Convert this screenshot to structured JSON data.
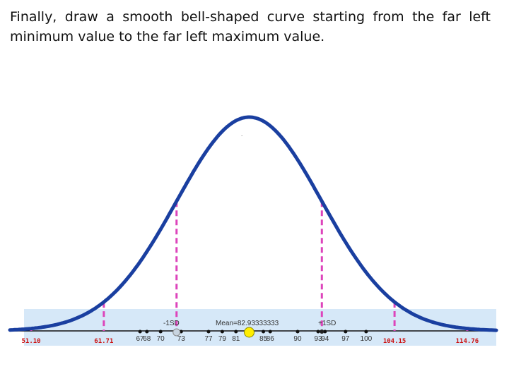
{
  "slide": {
    "instruction": "Finally, draw a smooth bell-shaped curve starting from the far left minimum value to the far left maximum value."
  },
  "chart_data": {
    "type": "line",
    "description_labels": {
      "mean": "Mean=82.93333333",
      "minus_sd": "-1SD",
      "plus_sd": "+1SD"
    },
    "mean": 82.93333333,
    "sd": 10.605,
    "xlim": [
      48,
      119
    ],
    "number_line": {
      "ticks": [
        67,
        68,
        70,
        73,
        77,
        79,
        81,
        85,
        86,
        90,
        93,
        94,
        97,
        100
      ],
      "tick_labels": [
        {
          "text": "67",
          "x": 67
        },
        {
          "text": "68",
          "x": 68
        },
        {
          "text": "70",
          "x": 70
        },
        {
          "text": "73",
          "x": 73
        },
        {
          "text": "77",
          "x": 77
        },
        {
          "text": "79",
          "x": 79
        },
        {
          "text": "81",
          "x": 81
        },
        {
          "text": "85",
          "x": 85
        },
        {
          "text": "86",
          "x": 86
        },
        {
          "text": "90",
          "x": 90
        },
        {
          "text": "93",
          "x": 93
        },
        {
          "text": "94",
          "x": 94
        },
        {
          "text": "97",
          "x": 97
        },
        {
          "text": "100",
          "x": 100
        }
      ]
    },
    "sd_markers": [
      {
        "label": "51.10",
        "x": 51.1
      },
      {
        "label": "61.71",
        "x": 61.71
      },
      {
        "label": "104.15",
        "x": 104.15
      },
      {
        "label": "114.76",
        "x": 114.76
      }
    ],
    "colors": {
      "curve": "#1a3fa0",
      "sd_lines": "#dd44bb",
      "band": "#d6e8f8",
      "mean_point": "#ffee00",
      "red_labels": "#cc1111"
    }
  }
}
